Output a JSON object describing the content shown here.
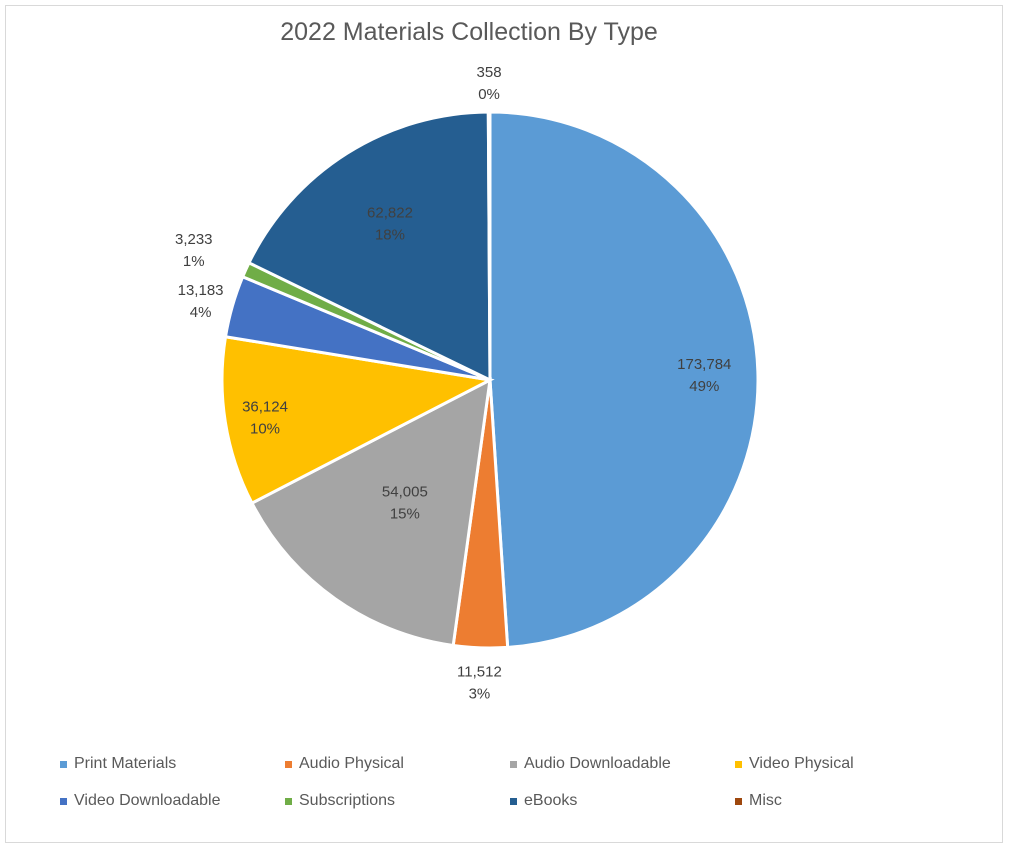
{
  "chart_data": {
    "type": "pie",
    "title": "2022 Materials Collection By Type",
    "legend_position": "bottom",
    "slices": [
      {
        "name": "Print Materials",
        "value": 173784,
        "value_label": "173,784",
        "percent_label": "49%",
        "color": "#5b9bd5"
      },
      {
        "name": "Audio Physical",
        "value": 11512,
        "value_label": "11,512",
        "percent_label": "3%",
        "color": "#ed7d31"
      },
      {
        "name": "Audio Downloadable",
        "value": 54005,
        "value_label": "54,005",
        "percent_label": "15%",
        "color": "#a5a5a5"
      },
      {
        "name": "Video Physical",
        "value": 36124,
        "value_label": "36,124",
        "percent_label": "10%",
        "color": "#ffc000"
      },
      {
        "name": "Video Downloadable",
        "value": 13183,
        "value_label": "13,183",
        "percent_label": "4%",
        "color": "#4472c4"
      },
      {
        "name": "Subscriptions",
        "value": 3233,
        "value_label": "3,233",
        "percent_label": "1%",
        "color": "#70ad47"
      },
      {
        "name": "eBooks",
        "value": 62822,
        "value_label": "62,822",
        "percent_label": "18%",
        "color": "#255e91"
      },
      {
        "name": "Misc",
        "value": 358,
        "value_label": "358",
        "percent_label": "0%",
        "color": "#9e480e"
      }
    ]
  }
}
